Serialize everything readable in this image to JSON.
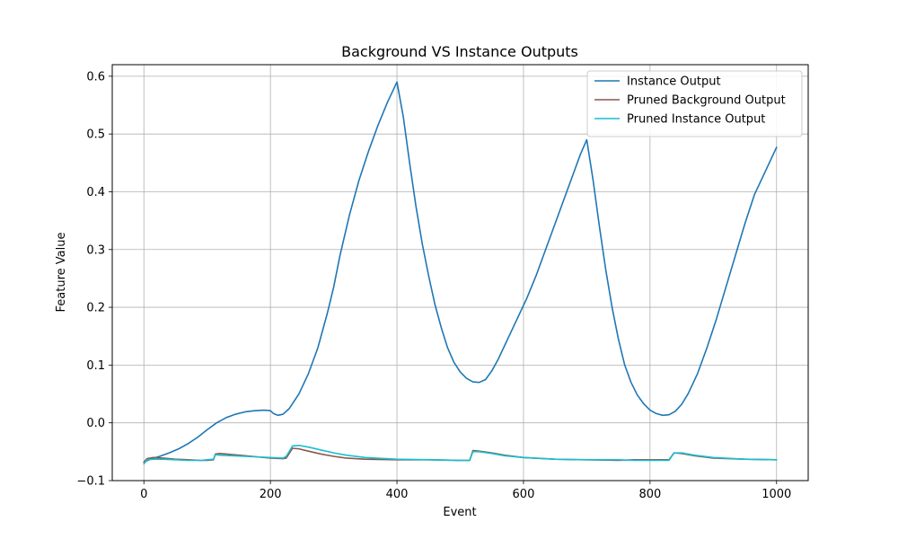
{
  "chart_data": {
    "type": "line",
    "title": "Background VS Instance Outputs",
    "xlabel": "Event",
    "ylabel": "Feature Value",
    "xlim": [
      -50,
      1050
    ],
    "ylim": [
      -0.1,
      0.62
    ],
    "xticks": [
      0,
      200,
      400,
      600,
      800,
      1000
    ],
    "yticks": [
      -0.1,
      0.0,
      0.1,
      0.2,
      0.3,
      0.4,
      0.5,
      0.6
    ],
    "ytick_labels": [
      "−0.1",
      "0.0",
      "0.1",
      "0.2",
      "0.3",
      "0.4",
      "0.5",
      "0.6"
    ],
    "grid": true,
    "legend_position": "top-right",
    "series": [
      {
        "name": "Instance Output",
        "color": "#1f77b4",
        "points": [
          [
            0,
            -0.068
          ],
          [
            10,
            -0.063
          ],
          [
            25,
            -0.058
          ],
          [
            40,
            -0.052
          ],
          [
            55,
            -0.045
          ],
          [
            70,
            -0.036
          ],
          [
            85,
            -0.025
          ],
          [
            100,
            -0.012
          ],
          [
            115,
            0.0
          ],
          [
            130,
            0.009
          ],
          [
            145,
            0.015
          ],
          [
            160,
            0.019
          ],
          [
            175,
            0.021
          ],
          [
            190,
            0.022
          ],
          [
            200,
            0.021
          ],
          [
            205,
            0.016
          ],
          [
            212,
            0.013
          ],
          [
            220,
            0.015
          ],
          [
            230,
            0.025
          ],
          [
            245,
            0.05
          ],
          [
            260,
            0.085
          ],
          [
            275,
            0.13
          ],
          [
            290,
            0.19
          ],
          [
            300,
            0.235
          ],
          [
            310,
            0.29
          ],
          [
            325,
            0.36
          ],
          [
            340,
            0.42
          ],
          [
            355,
            0.47
          ],
          [
            370,
            0.515
          ],
          [
            385,
            0.555
          ],
          [
            400,
            0.59
          ],
          [
            410,
            0.53
          ],
          [
            420,
            0.45
          ],
          [
            430,
            0.375
          ],
          [
            440,
            0.31
          ],
          [
            450,
            0.255
          ],
          [
            460,
            0.205
          ],
          [
            470,
            0.165
          ],
          [
            480,
            0.13
          ],
          [
            490,
            0.105
          ],
          [
            500,
            0.088
          ],
          [
            510,
            0.077
          ],
          [
            520,
            0.071
          ],
          [
            530,
            0.07
          ],
          [
            540,
            0.075
          ],
          [
            550,
            0.09
          ],
          [
            560,
            0.11
          ],
          [
            575,
            0.145
          ],
          [
            590,
            0.18
          ],
          [
            605,
            0.215
          ],
          [
            620,
            0.255
          ],
          [
            635,
            0.3
          ],
          [
            650,
            0.345
          ],
          [
            665,
            0.39
          ],
          [
            680,
            0.435
          ],
          [
            690,
            0.465
          ],
          [
            700,
            0.49
          ],
          [
            710,
            0.42
          ],
          [
            720,
            0.34
          ],
          [
            730,
            0.265
          ],
          [
            740,
            0.2
          ],
          [
            750,
            0.145
          ],
          [
            760,
            0.1
          ],
          [
            770,
            0.07
          ],
          [
            780,
            0.048
          ],
          [
            790,
            0.033
          ],
          [
            800,
            0.022
          ],
          [
            810,
            0.016
          ],
          [
            820,
            0.013
          ],
          [
            830,
            0.014
          ],
          [
            840,
            0.02
          ],
          [
            850,
            0.032
          ],
          [
            860,
            0.05
          ],
          [
            875,
            0.085
          ],
          [
            890,
            0.13
          ],
          [
            905,
            0.18
          ],
          [
            920,
            0.235
          ],
          [
            935,
            0.29
          ],
          [
            950,
            0.345
          ],
          [
            965,
            0.395
          ],
          [
            980,
            0.43
          ],
          [
            1000,
            0.477
          ]
        ]
      },
      {
        "name": "Pruned Background Output",
        "color": "#8c564b",
        "points": [
          [
            0,
            -0.068
          ],
          [
            5,
            -0.062
          ],
          [
            15,
            -0.06
          ],
          [
            30,
            -0.061
          ],
          [
            50,
            -0.063
          ],
          [
            70,
            -0.064
          ],
          [
            90,
            -0.065
          ],
          [
            100,
            -0.065
          ],
          [
            110,
            -0.064
          ],
          [
            113,
            -0.054
          ],
          [
            120,
            -0.053
          ],
          [
            140,
            -0.055
          ],
          [
            160,
            -0.057
          ],
          [
            180,
            -0.059
          ],
          [
            200,
            -0.061
          ],
          [
            220,
            -0.062
          ],
          [
            225,
            -0.061
          ],
          [
            235,
            -0.044
          ],
          [
            245,
            -0.045
          ],
          [
            260,
            -0.049
          ],
          [
            280,
            -0.054
          ],
          [
            300,
            -0.058
          ],
          [
            320,
            -0.061
          ],
          [
            350,
            -0.063
          ],
          [
            400,
            -0.064
          ],
          [
            450,
            -0.064
          ],
          [
            500,
            -0.065
          ],
          [
            515,
            -0.065
          ],
          [
            520,
            -0.048
          ],
          [
            530,
            -0.049
          ],
          [
            550,
            -0.052
          ],
          [
            570,
            -0.056
          ],
          [
            600,
            -0.06
          ],
          [
            650,
            -0.063
          ],
          [
            700,
            -0.064
          ],
          [
            750,
            -0.065
          ],
          [
            775,
            -0.064
          ],
          [
            780,
            -0.064
          ],
          [
            830,
            -0.064
          ],
          [
            838,
            -0.052
          ],
          [
            850,
            -0.053
          ],
          [
            870,
            -0.057
          ],
          [
            900,
            -0.061
          ],
          [
            950,
            -0.063
          ],
          [
            1000,
            -0.064
          ]
        ]
      },
      {
        "name": "Pruned Instance Output",
        "color": "#17becf",
        "points": [
          [
            0,
            -0.071
          ],
          [
            5,
            -0.064
          ],
          [
            15,
            -0.063
          ],
          [
            30,
            -0.063
          ],
          [
            50,
            -0.064
          ],
          [
            70,
            -0.065
          ],
          [
            90,
            -0.065
          ],
          [
            100,
            -0.064
          ],
          [
            110,
            -0.063
          ],
          [
            113,
            -0.055
          ],
          [
            120,
            -0.056
          ],
          [
            140,
            -0.057
          ],
          [
            160,
            -0.058
          ],
          [
            180,
            -0.059
          ],
          [
            200,
            -0.06
          ],
          [
            220,
            -0.061
          ],
          [
            225,
            -0.058
          ],
          [
            235,
            -0.04
          ],
          [
            245,
            -0.039
          ],
          [
            260,
            -0.042
          ],
          [
            280,
            -0.047
          ],
          [
            300,
            -0.052
          ],
          [
            320,
            -0.056
          ],
          [
            350,
            -0.06
          ],
          [
            400,
            -0.063
          ],
          [
            450,
            -0.064
          ],
          [
            500,
            -0.065
          ],
          [
            515,
            -0.065
          ],
          [
            520,
            -0.05
          ],
          [
            530,
            -0.05
          ],
          [
            550,
            -0.053
          ],
          [
            570,
            -0.057
          ],
          [
            600,
            -0.06
          ],
          [
            650,
            -0.063
          ],
          [
            700,
            -0.064
          ],
          [
            750,
            -0.064
          ],
          [
            775,
            -0.065
          ],
          [
            780,
            -0.065
          ],
          [
            830,
            -0.065
          ],
          [
            838,
            -0.052
          ],
          [
            850,
            -0.052
          ],
          [
            870,
            -0.056
          ],
          [
            900,
            -0.06
          ],
          [
            950,
            -0.063
          ],
          [
            1000,
            -0.064
          ]
        ]
      }
    ]
  }
}
